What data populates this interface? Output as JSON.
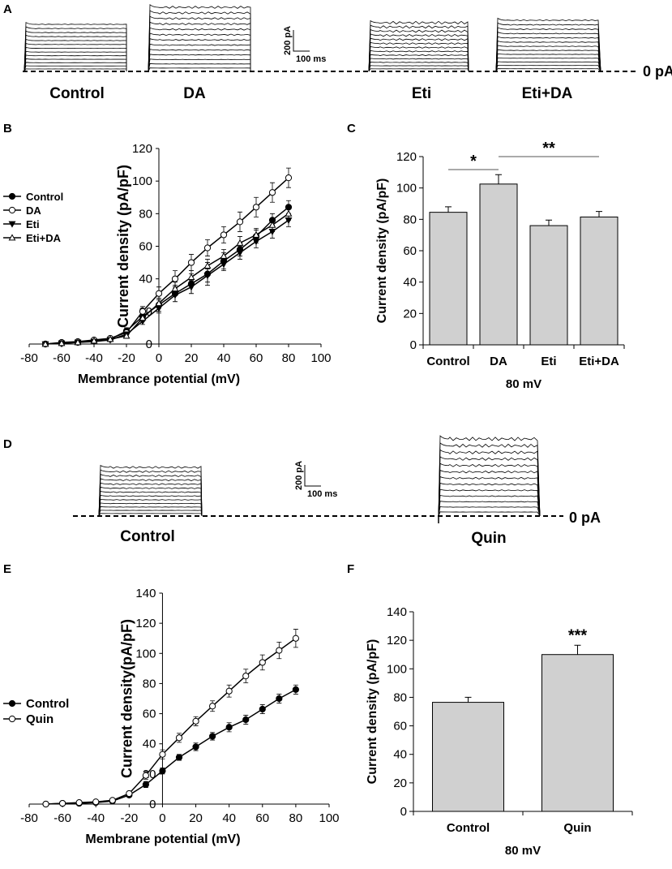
{
  "figure": {
    "panel_labels": [
      "A",
      "B",
      "C",
      "D",
      "E",
      "F"
    ],
    "colors": {
      "bar_fill": "#d0d0d0",
      "line": "#000000",
      "trace": "#000000"
    }
  },
  "panel_a": {
    "labels": [
      "Control",
      "DA",
      "Eti",
      "Eti+DA"
    ],
    "zero_label": "0 pA",
    "scale_y": "200 pA",
    "scale_x": "100 ms",
    "trace_count": 13
  },
  "panel_d": {
    "labels": [
      "Control",
      "Quin"
    ],
    "zero_label": "0 pA",
    "scale_y": "200 pA",
    "scale_x": "100 ms",
    "trace_count": 13
  },
  "chart_data": [
    {
      "panel": "B",
      "type": "line",
      "xlabel": "Membrance potential (mV)",
      "ylabel": "Current density (pA/pF)",
      "xlim": [
        -80,
        100
      ],
      "ylim": [
        0,
        120
      ],
      "xticks": [
        -80,
        -60,
        -40,
        -20,
        0,
        20,
        40,
        60,
        80,
        100
      ],
      "yticks": [
        0,
        20,
        40,
        60,
        80,
        100,
        120
      ],
      "legend_position": "left",
      "x": [
        -70,
        -60,
        -50,
        -40,
        -30,
        -20,
        -10,
        0,
        10,
        20,
        30,
        40,
        50,
        60,
        70,
        80
      ],
      "series": [
        {
          "name": "Control",
          "marker": "circle-filled",
          "values": [
            0,
            0.5,
            1,
            2,
            3,
            8,
            17,
            24,
            31,
            37,
            43,
            51,
            58,
            66,
            76,
            84
          ],
          "errors": [
            0,
            0.5,
            0.5,
            0.8,
            1,
            2,
            3,
            4,
            5,
            6,
            7,
            5,
            4,
            4,
            4,
            4
          ]
        },
        {
          "name": "DA",
          "marker": "circle-open",
          "values": [
            0,
            1,
            1.5,
            2.5,
            3.5,
            7,
            20,
            31,
            40,
            50,
            59,
            67,
            75,
            84,
            93,
            102
          ],
          "errors": [
            0,
            0.5,
            0.5,
            0.8,
            1,
            2,
            3,
            4,
            5,
            5,
            5,
            5,
            6,
            6,
            6,
            6
          ]
        },
        {
          "name": "Eti",
          "marker": "triangle-down-filled",
          "values": [
            0,
            0.5,
            1,
            1.5,
            2.5,
            6,
            14,
            22,
            30,
            35,
            42,
            49,
            56,
            63,
            69,
            76
          ],
          "errors": [
            0,
            0.5,
            0.5,
            0.5,
            0.8,
            1.5,
            2,
            3,
            4,
            4,
            4,
            4,
            4,
            4,
            4,
            4
          ]
        },
        {
          "name": "Eti+DA",
          "marker": "triangle-up-open",
          "values": [
            0,
            0.5,
            1,
            2,
            3,
            5,
            16,
            25,
            34,
            41,
            48,
            54,
            62,
            67,
            73,
            80
          ],
          "errors": [
            0,
            0.5,
            0.5,
            0.8,
            1,
            1.5,
            2,
            3,
            4,
            4,
            4,
            4,
            4,
            4,
            4,
            4
          ]
        }
      ]
    },
    {
      "panel": "C",
      "type": "bar",
      "xlabel": "80 mV",
      "ylabel": "Current density (pA/pF)",
      "ylim": [
        0,
        120
      ],
      "yticks": [
        0,
        20,
        40,
        60,
        80,
        100,
        120
      ],
      "categories": [
        "Control",
        "DA",
        "Eti",
        "Eti+DA"
      ],
      "values": [
        84.5,
        102.5,
        76,
        81.5
      ],
      "errors": [
        3.5,
        6,
        3.5,
        3.5
      ],
      "annotations": [
        {
          "text": "*",
          "between": [
            "Control",
            "DA"
          ]
        },
        {
          "text": "**",
          "between": [
            "DA",
            "Eti+DA"
          ]
        }
      ]
    },
    {
      "panel": "E",
      "type": "line",
      "xlabel": "Membrane potential (mV)",
      "ylabel": "Current density(pA/pF)",
      "xlim": [
        -80,
        100
      ],
      "ylim": [
        0,
        140
      ],
      "xticks": [
        -80,
        -60,
        -40,
        -20,
        0,
        20,
        40,
        60,
        80,
        100
      ],
      "yticks": [
        0,
        20,
        40,
        60,
        80,
        100,
        120,
        140
      ],
      "legend_position": "left",
      "x": [
        -70,
        -60,
        -50,
        -40,
        -30,
        -20,
        -10,
        0,
        10,
        20,
        30,
        40,
        50,
        60,
        70,
        80
      ],
      "series": [
        {
          "name": "Control",
          "marker": "circle-filled",
          "values": [
            0,
            0.5,
            0.5,
            1,
            2,
            6,
            13,
            22,
            31,
            38,
            45,
            51,
            56,
            63,
            70,
            76
          ],
          "errors": [
            0,
            0.3,
            0.3,
            0.5,
            0.5,
            1,
            2,
            2,
            2,
            2.5,
            2.5,
            3,
            3,
            3,
            3,
            3
          ]
        },
        {
          "name": "Quin",
          "marker": "circle-open",
          "values": [
            0,
            0.5,
            1,
            1.5,
            2.5,
            7,
            19,
            33,
            44,
            55,
            65,
            75,
            85,
            94,
            102,
            110
          ],
          "errors": [
            0,
            0.3,
            0.3,
            0.5,
            0.8,
            1.5,
            2.5,
            3,
            3,
            3,
            3.5,
            4,
            4.5,
            5,
            5.5,
            6
          ]
        }
      ]
    },
    {
      "panel": "F",
      "type": "bar",
      "xlabel": "80 mV",
      "ylabel": "Current density (pA/pF)",
      "ylim": [
        0,
        140
      ],
      "yticks": [
        0,
        20,
        40,
        60,
        80,
        100,
        120,
        140
      ],
      "categories": [
        "Control",
        "Quin"
      ],
      "values": [
        76.5,
        110
      ],
      "errors": [
        3.5,
        6.5
      ],
      "annotations": [
        {
          "text": "***",
          "over": "Quin"
        }
      ]
    }
  ]
}
